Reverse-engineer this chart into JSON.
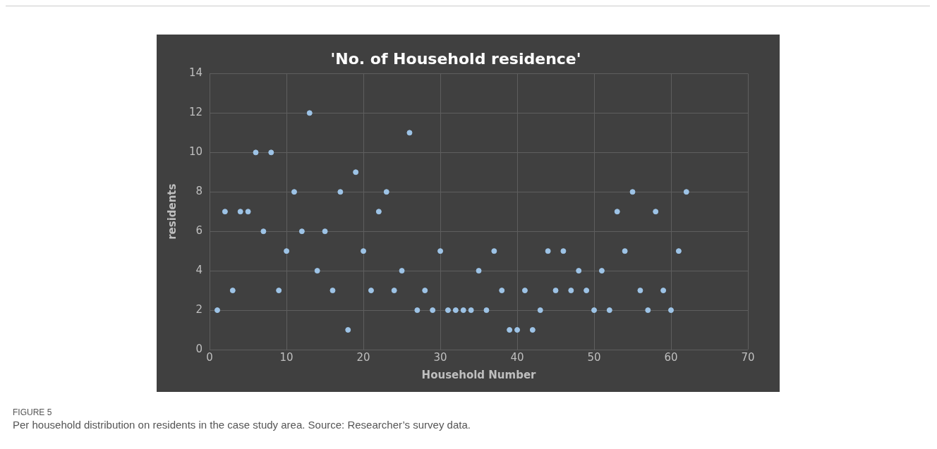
{
  "chart_data": {
    "type": "scatter",
    "title": "'No. of Household residence'",
    "xlabel": "Household Number",
    "ylabel": "residents",
    "x": [
      1,
      2,
      3,
      4,
      5,
      6,
      7,
      8,
      9,
      10,
      11,
      12,
      13,
      14,
      15,
      16,
      17,
      18,
      19,
      20,
      21,
      22,
      23,
      24,
      25,
      26,
      27,
      28,
      29,
      30,
      31,
      32,
      33,
      34,
      35,
      36,
      37,
      38,
      39,
      40,
      41,
      42,
      43,
      44,
      45,
      46,
      47,
      48,
      49,
      50,
      51,
      52,
      53,
      54,
      55,
      56,
      57,
      58,
      59,
      60,
      61,
      62
    ],
    "values": [
      2,
      7,
      3,
      7,
      7,
      10,
      6,
      10,
      3,
      5,
      8,
      6,
      12,
      4,
      6,
      3,
      8,
      1,
      9,
      5,
      3,
      7,
      8,
      3,
      4,
      11,
      2,
      3,
      2,
      5,
      2,
      2,
      2,
      2,
      4,
      2,
      5,
      3,
      1,
      1,
      3,
      1,
      2,
      5,
      3,
      5,
      3,
      4,
      3,
      2,
      4,
      2,
      7,
      5,
      8,
      3,
      2,
      7,
      3,
      2,
      5,
      8
    ],
    "color": "#9dc3e6",
    "marker": "circle",
    "xlim": [
      0,
      70
    ],
    "xticks": [
      0,
      10,
      20,
      30,
      40,
      50,
      60,
      70
    ],
    "ylim": [
      0,
      14
    ],
    "yticks": [
      0,
      2,
      4,
      6,
      8,
      10,
      12,
      14
    ],
    "grid": true,
    "legend": false,
    "annotations": [
      "FIGURE 5",
      "Per household distribution on residents in the case study area. Source: Researcher’s survey data."
    ]
  }
}
